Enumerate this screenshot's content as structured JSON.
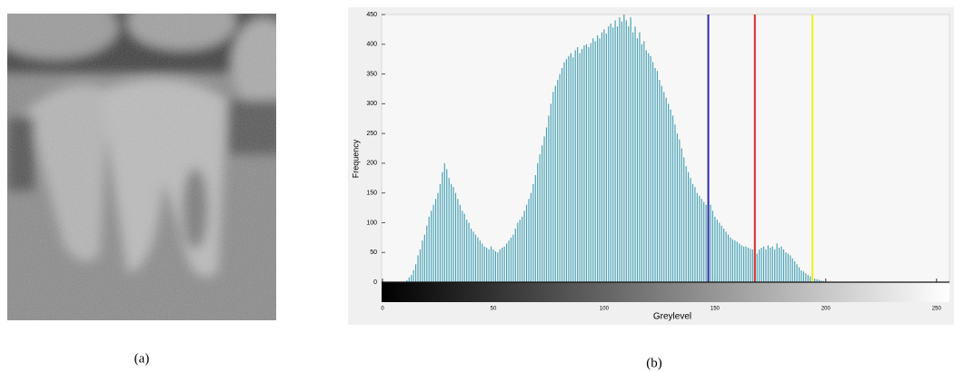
{
  "captions": [
    "(a)",
    "(b)"
  ],
  "chart_data": {
    "type": "bar",
    "xlabel": "Greylevel",
    "ylabel": "Frequency",
    "color": "#4aa3b5",
    "xlim": [
      0,
      255
    ],
    "xticks": [
      0,
      50,
      100,
      150,
      200,
      250
    ],
    "ylim": [
      0,
      450
    ],
    "yticks": [
      0,
      50,
      100,
      150,
      200,
      250,
      300,
      350,
      400,
      450
    ],
    "grid": false,
    "x": [
      10,
      11,
      12,
      13,
      14,
      15,
      16,
      17,
      18,
      19,
      20,
      21,
      22,
      23,
      24,
      25,
      26,
      27,
      28,
      29,
      30,
      31,
      32,
      33,
      34,
      35,
      36,
      37,
      38,
      39,
      40,
      41,
      42,
      43,
      44,
      45,
      46,
      47,
      48,
      49,
      50,
      51,
      52,
      53,
      54,
      55,
      56,
      57,
      58,
      59,
      60,
      61,
      62,
      63,
      64,
      65,
      66,
      67,
      68,
      69,
      70,
      71,
      72,
      73,
      74,
      75,
      76,
      77,
      78,
      79,
      80,
      81,
      82,
      83,
      84,
      85,
      86,
      87,
      88,
      89,
      90,
      91,
      92,
      93,
      94,
      95,
      96,
      97,
      98,
      99,
      100,
      101,
      102,
      103,
      104,
      105,
      106,
      107,
      108,
      109,
      110,
      111,
      112,
      113,
      114,
      115,
      116,
      117,
      118,
      119,
      120,
      121,
      122,
      123,
      124,
      125,
      126,
      127,
      128,
      129,
      130,
      131,
      132,
      133,
      134,
      135,
      136,
      137,
      138,
      139,
      140,
      141,
      142,
      143,
      144,
      145,
      146,
      147,
      148,
      149,
      150,
      151,
      152,
      153,
      154,
      155,
      156,
      157,
      158,
      159,
      160,
      161,
      162,
      163,
      164,
      165,
      166,
      167,
      168,
      169,
      170,
      171,
      172,
      173,
      174,
      175,
      176,
      177,
      178,
      179,
      180,
      181,
      182,
      183,
      184,
      185,
      186,
      187,
      188,
      189,
      190,
      191,
      192,
      193,
      194,
      195,
      196,
      197,
      198,
      199,
      200,
      201,
      202
    ],
    "values": [
      0,
      3,
      8,
      12,
      20,
      30,
      45,
      55,
      70,
      80,
      95,
      110,
      120,
      130,
      140,
      150,
      165,
      185,
      200,
      190,
      175,
      165,
      160,
      150,
      140,
      130,
      120,
      115,
      105,
      100,
      90,
      85,
      80,
      75,
      70,
      65,
      60,
      58,
      55,
      60,
      55,
      52,
      50,
      55,
      58,
      60,
      65,
      70,
      75,
      80,
      90,
      100,
      105,
      110,
      120,
      130,
      140,
      150,
      165,
      180,
      200,
      215,
      230,
      245,
      260,
      280,
      300,
      320,
      330,
      340,
      350,
      360,
      370,
      375,
      380,
      385,
      378,
      390,
      395,
      385,
      392,
      398,
      400,
      395,
      402,
      410,
      405,
      415,
      410,
      420,
      425,
      418,
      430,
      435,
      428,
      440,
      430,
      445,
      438,
      450,
      440,
      430,
      445,
      420,
      430,
      410,
      420,
      400,
      405,
      390,
      385,
      380,
      370,
      360,
      355,
      340,
      330,
      320,
      310,
      300,
      290,
      280,
      265,
      250,
      240,
      225,
      210,
      195,
      185,
      175,
      165,
      160,
      150,
      145,
      140,
      135,
      130,
      125,
      130,
      120,
      110,
      105,
      100,
      95,
      90,
      85,
      80,
      75,
      72,
      70,
      68,
      65,
      62,
      60,
      60,
      58,
      56,
      55,
      50,
      48,
      55,
      58,
      60,
      55,
      62,
      58,
      60,
      55,
      65,
      58,
      60,
      55,
      50,
      48,
      45,
      40,
      35,
      30,
      25,
      20,
      18,
      15,
      12,
      10,
      8,
      6,
      5,
      4,
      3,
      2,
      1,
      1,
      0
    ],
    "thresholds": [
      {
        "value": 147,
        "color": "#2b2ba8"
      },
      {
        "value": 168,
        "color": "#d42a2a"
      },
      {
        "value": 194,
        "color": "#f2ee1a"
      }
    ]
  }
}
